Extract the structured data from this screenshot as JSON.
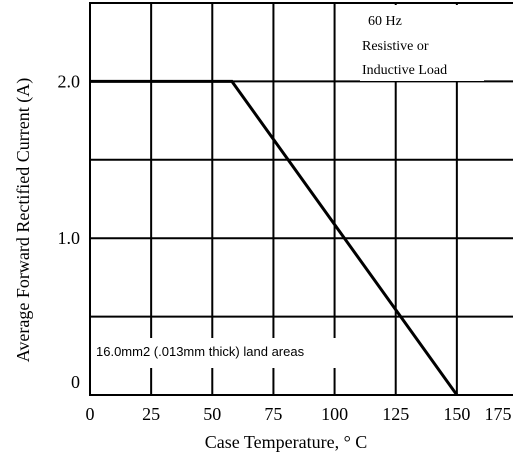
{
  "chart_data": {
    "type": "line",
    "title": "",
    "xlabel": "Case Temperature, ° C",
    "ylabel": "Average Forward Rectified Current (A)",
    "xlim": [
      0,
      175
    ],
    "ylim": [
      0,
      2.5
    ],
    "x_ticks": [
      0,
      25,
      50,
      75,
      100,
      125,
      150,
      175
    ],
    "x_tick_labels": [
      "0",
      "25",
      "50",
      "75",
      "100",
      "125",
      "150",
      "175"
    ],
    "y_gridlines": [
      0.5,
      1.0,
      1.5,
      2.0
    ],
    "y_tick_values": [
      0,
      1.0,
      2.0
    ],
    "y_tick_labels": [
      "0",
      "1.0",
      "2.0"
    ],
    "grid": true,
    "series": [
      {
        "x": [
          0,
          58,
          150
        ],
        "y": [
          2.0,
          2.0,
          0
        ]
      }
    ],
    "annotations": {
      "conditions": [
        "60 Hz",
        "Resistive or",
        "Inductive Load"
      ],
      "land_areas": "16.0mm2 (.013mm thick) land areas"
    },
    "colors": {
      "line": "#000000",
      "grid": "#000000",
      "background": "#ffffff"
    }
  }
}
